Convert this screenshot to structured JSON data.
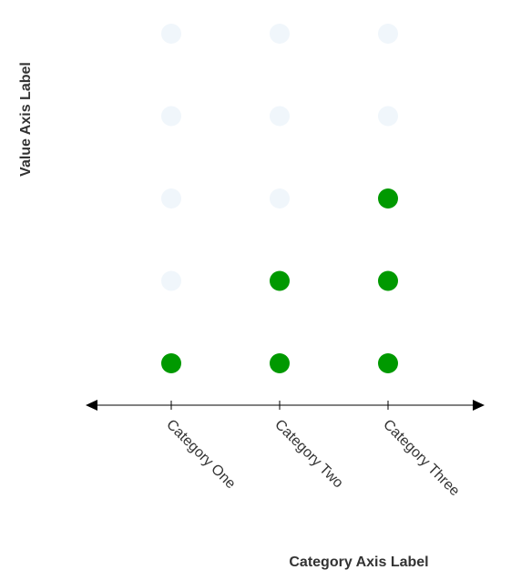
{
  "chart_data": {
    "type": "scatter",
    "subtype": "dot-count",
    "categories": [
      "Category One",
      "Category Two",
      "Category Three"
    ],
    "values": [
      1,
      2,
      3
    ],
    "max_dots": 5,
    "xlabel": "Category Axis Label",
    "ylabel": "Value Axis Label",
    "grid": false,
    "legend": "none",
    "colors": {
      "filled": "#009900",
      "empty": "#f0f6fb",
      "axis": "#000000",
      "text": "#333333"
    }
  }
}
